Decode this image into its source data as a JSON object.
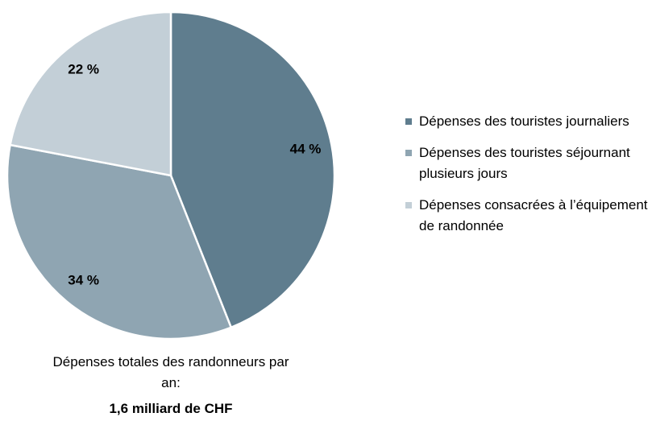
{
  "chart_data": {
    "type": "pie",
    "categories": [
      "Dépenses des touristes journaliers",
      "Dépenses des touristes séjournant plusieurs jours",
      "Dépenses consacrées à l’équipement de randonnée"
    ],
    "values": [
      44,
      34,
      22
    ],
    "value_labels": [
      "44 %",
      "34 %",
      "22 %"
    ],
    "colors": [
      "#5f7d8e",
      "#8fa5b2",
      "#c3cfd7"
    ],
    "legend": "right",
    "caption": "Dépenses totales des randonneurs par an:",
    "caption_value": "1,6 milliard de CHF"
  }
}
